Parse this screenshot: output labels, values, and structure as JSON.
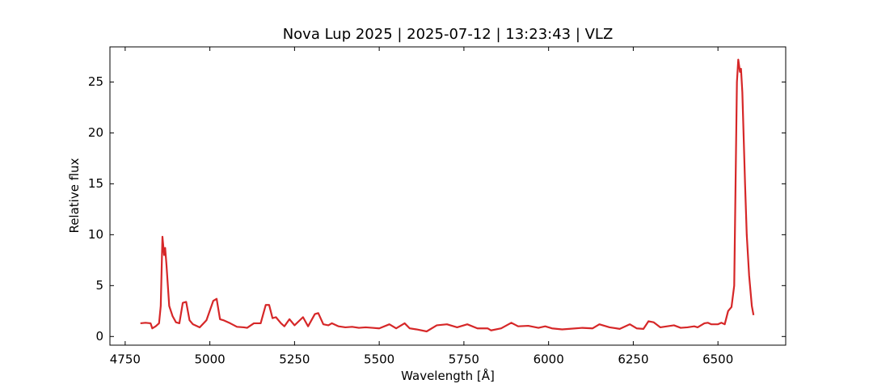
{
  "chart_data": {
    "type": "line",
    "title": "Nova Lup 2025 | 2025-07-12 | 13:23:43 | VLZ",
    "x_label": "Wavelength [Å]",
    "y_label": "Relative flux",
    "x": [
      4795,
      4810,
      4825,
      4830,
      4840,
      4850,
      4855,
      4860,
      4865,
      4868,
      4872,
      4880,
      4890,
      4900,
      4910,
      4920,
      4930,
      4940,
      4950,
      4970,
      4990,
      5010,
      5020,
      5030,
      5040,
      5060,
      5080,
      5100,
      5110,
      5130,
      5150,
      5165,
      5175,
      5185,
      5195,
      5210,
      5220,
      5235,
      5250,
      5275,
      5290,
      5310,
      5320,
      5335,
      5350,
      5360,
      5380,
      5400,
      5420,
      5440,
      5460,
      5480,
      5500,
      5530,
      5550,
      5575,
      5590,
      5610,
      5640,
      5670,
      5700,
      5730,
      5760,
      5790,
      5820,
      5830,
      5860,
      5890,
      5910,
      5940,
      5970,
      5990,
      6010,
      6040,
      6060,
      6100,
      6130,
      6150,
      6180,
      6210,
      6240,
      6260,
      6280,
      6295,
      6310,
      6330,
      6370,
      6390,
      6410,
      6430,
      6440,
      6460,
      6470,
      6480,
      6500,
      6510,
      6520,
      6530,
      6540,
      6548,
      6552,
      6556,
      6560,
      6565,
      6568,
      6572,
      6580,
      6585,
      6592,
      6600,
      6605
    ],
    "series": [
      {
        "name": "spectrum",
        "color": "#d62728",
        "values": [
          1.3,
          1.35,
          1.3,
          0.8,
          1.0,
          1.3,
          3,
          9.8,
          8.0,
          8.7,
          7,
          3,
          2.0,
          1.4,
          1.3,
          3.3,
          3.4,
          1.6,
          1.2,
          0.9,
          1.6,
          3.5,
          3.7,
          1.7,
          1.6,
          1.3,
          0.95,
          0.9,
          0.85,
          1.3,
          1.3,
          3.1,
          3.1,
          1.8,
          1.9,
          1.3,
          1.0,
          1.7,
          1.1,
          1.9,
          1.0,
          2.2,
          2.3,
          1.2,
          1.1,
          1.3,
          1.0,
          0.9,
          0.95,
          0.85,
          0.9,
          0.85,
          0.8,
          1.2,
          0.8,
          1.3,
          0.8,
          0.7,
          0.5,
          1.1,
          1.2,
          0.9,
          1.2,
          0.8,
          0.8,
          0.6,
          0.8,
          1.35,
          1.0,
          1.05,
          0.85,
          1.0,
          0.8,
          0.7,
          0.75,
          0.85,
          0.8,
          1.2,
          0.9,
          0.75,
          1.2,
          0.8,
          0.75,
          1.5,
          1.4,
          0.9,
          1.1,
          0.85,
          0.9,
          1.0,
          0.9,
          1.3,
          1.35,
          1.2,
          1.2,
          1.35,
          1.2,
          2.5,
          2.9,
          5,
          15,
          25,
          27.2,
          26.0,
          26.3,
          24,
          15,
          10,
          6,
          3,
          2.1
        ]
      }
    ],
    "xlim": [
      4705,
      6700
    ],
    "ylim": [
      -0.85,
      28.45
    ],
    "xticks": [
      4750,
      5000,
      5250,
      5500,
      5750,
      6000,
      6250,
      6500
    ],
    "yticks": [
      0,
      5,
      10,
      15,
      20,
      25
    ]
  }
}
